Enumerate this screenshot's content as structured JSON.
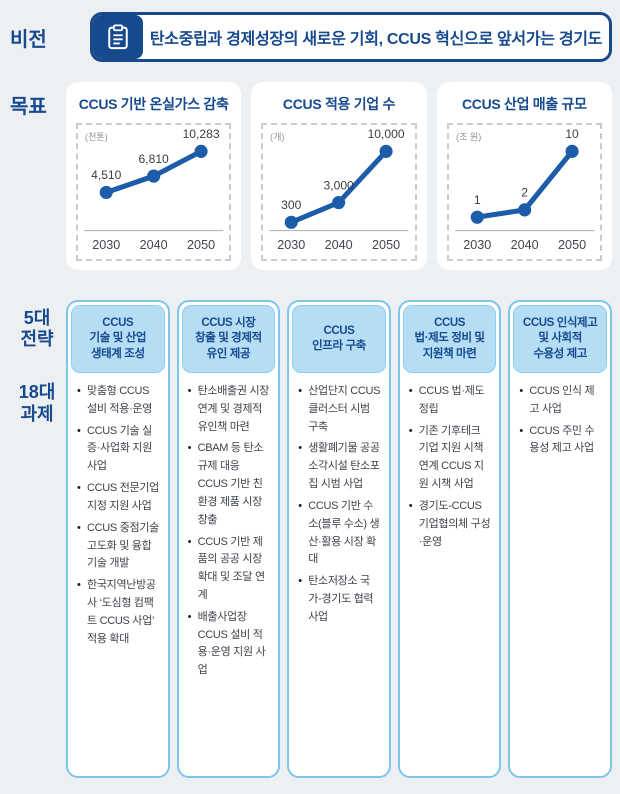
{
  "colors": {
    "navy": "#17498f",
    "line_blue": "#1c5ca8",
    "column_border": "#7ec5ee",
    "header_fill": "#b5def4",
    "page_bg": "#edf0f3"
  },
  "vision": {
    "label": "비전",
    "icon": "clipboard-icon",
    "text": "탄소중립과 경제성장의 새로운 기회, CCUS 혁신으로 앞서가는 경기도"
  },
  "goals": {
    "label": "목표"
  },
  "chart_data": [
    {
      "type": "line",
      "title": "CCUS 기반 온실가스 감축",
      "unit": "(천톤)",
      "x": [
        "2030",
        "2040",
        "2050"
      ],
      "values": [
        4510,
        6810,
        10283
      ],
      "labels": [
        "4,510",
        "6,810",
        "10,283"
      ],
      "ylim": [
        0,
        10283
      ],
      "grid": false,
      "line_color": "#1c5ca8"
    },
    {
      "type": "line",
      "title": "CCUS 적용 기업 수",
      "unit": "(개)",
      "x": [
        "2030",
        "2040",
        "2050"
      ],
      "values": [
        300,
        3000,
        10000
      ],
      "labels": [
        "300",
        "3,000",
        "10,000"
      ],
      "ylim": [
        0,
        10000
      ],
      "grid": false,
      "line_color": "#1c5ca8"
    },
    {
      "type": "line",
      "title": "CCUS 산업 매출 규모",
      "unit": "(조 원)",
      "x": [
        "2030",
        "2040",
        "2050"
      ],
      "values": [
        1,
        2,
        10
      ],
      "labels": [
        "1",
        "2",
        "10"
      ],
      "ylim": [
        0,
        10
      ],
      "grid": false,
      "line_color": "#1c5ca8"
    }
  ],
  "strategy": {
    "label_top": "5대\n전략",
    "label_bottom": "18대\n과제",
    "columns": [
      {
        "header": "CCUS\n기술 및 산업\n생태계 조성",
        "items": [
          "맞춤형 CCUS 설비 적용·운영",
          "CCUS 기술 실증·사업화 지원 사업",
          "CCUS 전문기업 지정 지원 사업",
          "CCUS 중점기술 고도화 및 융합기술 개발",
          "한국지역난방공사 ‘도심형 컴팩트 CCUS 사업’ 적용 확대"
        ]
      },
      {
        "header": "CCUS 시장\n창출 및 경제적\n유인 제공",
        "items": [
          "탄소배출권 시장 연계 및 경제적 유인책 마련",
          "CBAM 등 탄소규제 대응 CCUS 기반 친환경 제품 시장 창출",
          "CCUS 기반 제품의 공공 시장 확대 및 조달 연계",
          "배출사업장 CCUS 설비 적용·운영 지원 사업"
        ]
      },
      {
        "header": "CCUS\n인프라 구축",
        "items": [
          "산업단지 CCUS 클러스터 시범 구축",
          "생활폐기물 공공소각시설 탄소포집 시범 사업",
          "CCUS 기반 수소(블루 수소) 생산·활용 시장 확대",
          "탄소저장소 국가-경기도 협력 사업"
        ]
      },
      {
        "header": "CCUS\n법·제도 정비 및\n지원책 마련",
        "items": [
          "CCUS 법·제도 정립",
          "기존 기후테크 기업 지원 시책 연계 CCUS 지원 시책 사업",
          "경기도-CCUS 기업협의체 구성·운영"
        ]
      },
      {
        "header": "CCUS 인식제고\n및 사회적\n수용성 제고",
        "items": [
          "CCUS 인식 제고 사업",
          "CCUS 주민 수용성 제고 사업"
        ]
      }
    ]
  }
}
